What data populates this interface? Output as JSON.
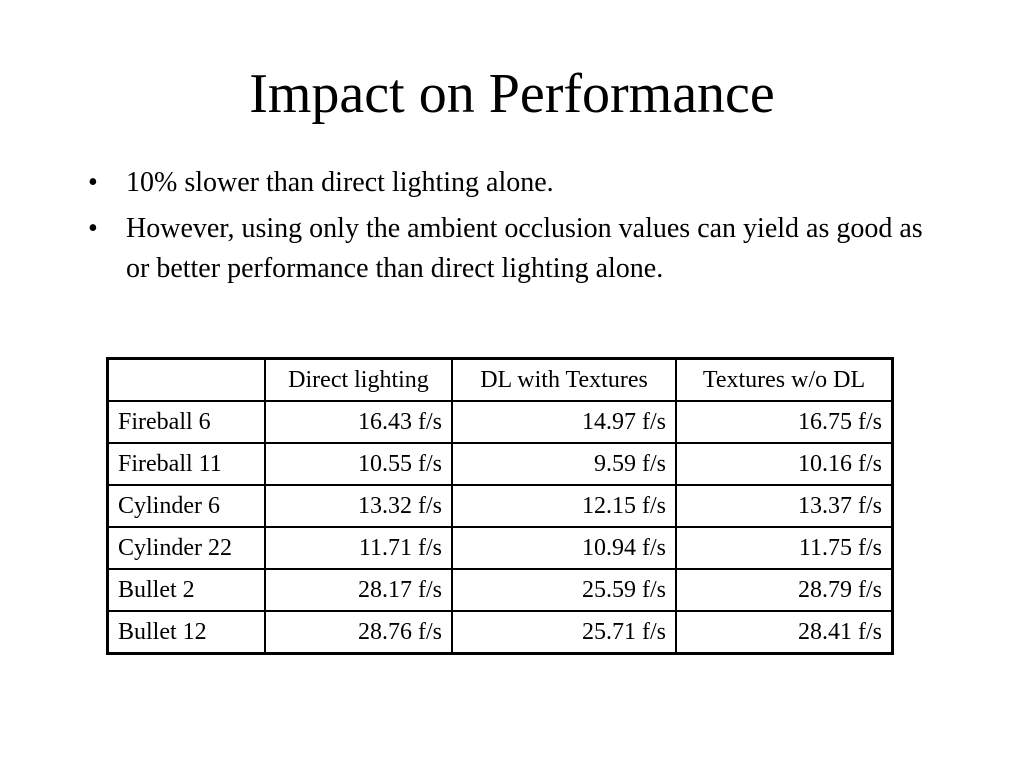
{
  "slide": {
    "title": "Impact on Performance",
    "bullet_symbol": "•",
    "bullets": [
      "10% slower than direct lighting alone.",
      "However, using only the ambient occlusion values can yield as good as or better performance than direct lighting alone."
    ]
  },
  "table": {
    "headers": [
      "",
      "Direct lighting",
      "DL with Textures",
      "Textures w/o DL"
    ],
    "rows": [
      {
        "label": "Fireball 6",
        "direct": "16.43 f/s",
        "dl_textures": "14.97 f/s",
        "textures_no_dl": "16.75 f/s"
      },
      {
        "label": "Fireball 11",
        "direct": "10.55 f/s",
        "dl_textures": "9.59 f/s",
        "textures_no_dl": "10.16 f/s"
      },
      {
        "label": "Cylinder 6",
        "direct": "13.32 f/s",
        "dl_textures": "12.15 f/s",
        "textures_no_dl": "13.37 f/s"
      },
      {
        "label": "Cylinder 22",
        "direct": "11.71 f/s",
        "dl_textures": "10.94 f/s",
        "textures_no_dl": "11.75 f/s"
      },
      {
        "label": "Bullet 2",
        "direct": "28.17 f/s",
        "dl_textures": "25.59 f/s",
        "textures_no_dl": "28.79 f/s"
      },
      {
        "label": "Bullet 12",
        "direct": "28.76 f/s",
        "dl_textures": "25.71 f/s",
        "textures_no_dl": "28.41 f/s"
      }
    ]
  }
}
